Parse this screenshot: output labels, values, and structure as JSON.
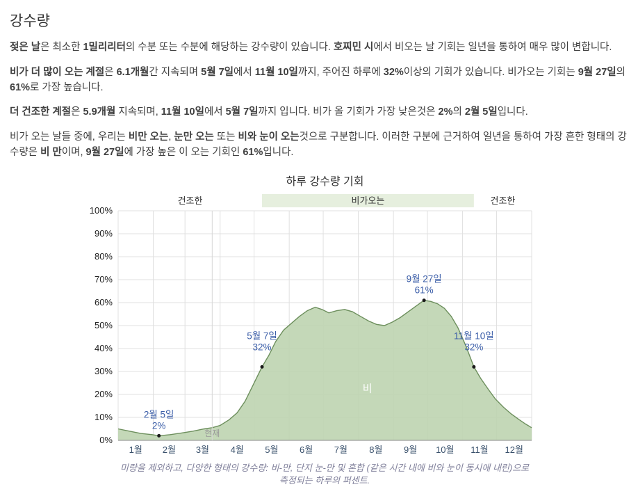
{
  "page": {
    "title": "강수량",
    "paragraphs": [
      {
        "segments": [
          {
            "text": "젖은 날",
            "bold": true
          },
          {
            "text": "은 최소한 ",
            "bold": false
          },
          {
            "text": "1밀리리터",
            "bold": true
          },
          {
            "text": "의 수분 또는 수분에 해당하는 강수량이 있습니다. ",
            "bold": false
          },
          {
            "text": "호찌민 시",
            "bold": true
          },
          {
            "text": "에서 비오는 날 기회는 일년을 통하여 매우 많이 변합니다.",
            "bold": false
          }
        ]
      },
      {
        "segments": [
          {
            "text": "비가 더 많이 오는 계절",
            "bold": true
          },
          {
            "text": "은 ",
            "bold": false
          },
          {
            "text": "6.1개월",
            "bold": true
          },
          {
            "text": "간 지속되며 ",
            "bold": false
          },
          {
            "text": "5월 7일",
            "bold": true
          },
          {
            "text": "에서 ",
            "bold": false
          },
          {
            "text": "11월 10일",
            "bold": true
          },
          {
            "text": "까지, 주어진 하루에 ",
            "bold": false
          },
          {
            "text": "32%",
            "bold": true
          },
          {
            "text": "이상의 기회가 있습니다. 비가오는 기회는 ",
            "bold": false
          },
          {
            "text": "9월 27일",
            "bold": true
          },
          {
            "text": "의 ",
            "bold": false
          },
          {
            "text": "61%",
            "bold": true
          },
          {
            "text": "로 가장 높습니다.",
            "bold": false
          }
        ]
      },
      {
        "segments": [
          {
            "text": "더 건조한 계절",
            "bold": true
          },
          {
            "text": "은 ",
            "bold": false
          },
          {
            "text": "5.9개월",
            "bold": true
          },
          {
            "text": " 지속되며, ",
            "bold": false
          },
          {
            "text": "11월 10일",
            "bold": true
          },
          {
            "text": "에서 ",
            "bold": false
          },
          {
            "text": "5월 7일",
            "bold": true
          },
          {
            "text": "까지 입니다. 비가 올 기회가 가장 낮은것은 ",
            "bold": false
          },
          {
            "text": "2%",
            "bold": true
          },
          {
            "text": "의 ",
            "bold": false
          },
          {
            "text": "2월 5일",
            "bold": true
          },
          {
            "text": "입니다.",
            "bold": false
          }
        ]
      },
      {
        "segments": [
          {
            "text": "비가 오는 날들 중에, 우리는 ",
            "bold": false
          },
          {
            "text": "비만 오는",
            "bold": true
          },
          {
            "text": ", ",
            "bold": false
          },
          {
            "text": "눈만 오는",
            "bold": true
          },
          {
            "text": " 또는 ",
            "bold": false
          },
          {
            "text": "비와 눈이 오는",
            "bold": true
          },
          {
            "text": "것으로 구분합니다. 이러한 구분에 근거하여 일년을 통하여 가장 흔한 형태의 강수량은 ",
            "bold": false
          },
          {
            "text": "비 만",
            "bold": true
          },
          {
            "text": "이며, ",
            "bold": false
          },
          {
            "text": "9월 27일",
            "bold": true
          },
          {
            "text": "에 가장 높은 이 오는 기회인 ",
            "bold": false
          },
          {
            "text": "61%",
            "bold": true
          },
          {
            "text": "입니다.",
            "bold": false
          }
        ]
      }
    ]
  },
  "chart_data": {
    "type": "area",
    "title": "하루 강수량 기회",
    "caption": "미량을 제외하고, 다양한 형태의 강수량: 비-만, 단지 눈-만 및 혼합 (같은 시간 내에 비와 눈이 동시에 내린)으로 측정되는 하루의 퍼센트.",
    "x_unit": "day_of_year",
    "ylim": [
      0,
      100
    ],
    "grid": true,
    "y_ticks": [
      {
        "label": "0%",
        "value": 0
      },
      {
        "label": "10%",
        "value": 10
      },
      {
        "label": "20%",
        "value": 20
      },
      {
        "label": "30%",
        "value": 30
      },
      {
        "label": "40%",
        "value": 40
      },
      {
        "label": "50%",
        "value": 50
      },
      {
        "label": "60%",
        "value": 60
      },
      {
        "label": "70%",
        "value": 70
      },
      {
        "label": "80%",
        "value": 80
      },
      {
        "label": "90%",
        "value": 90
      },
      {
        "label": "100%",
        "value": 100
      }
    ],
    "month_labels": [
      "1월",
      "2월",
      "3월",
      "4월",
      "5월",
      "6월",
      "7월",
      "8월",
      "9월",
      "10월",
      "11월",
      "12월"
    ],
    "month_boundaries": [
      0,
      31,
      59,
      90,
      120,
      151,
      181,
      212,
      243,
      273,
      304,
      334,
      365
    ],
    "points": [
      [
        0,
        5
      ],
      [
        10,
        4
      ],
      [
        20,
        3
      ],
      [
        30,
        2.5
      ],
      [
        36,
        2
      ],
      [
        46,
        2.5
      ],
      [
        56,
        3.2
      ],
      [
        66,
        4
      ],
      [
        76,
        5
      ],
      [
        83,
        5.5
      ],
      [
        90,
        6.5
      ],
      [
        98,
        9
      ],
      [
        105,
        12
      ],
      [
        112,
        17
      ],
      [
        118,
        23
      ],
      [
        123,
        28
      ],
      [
        127,
        32
      ],
      [
        133,
        37
      ],
      [
        139,
        43
      ],
      [
        146,
        48
      ],
      [
        153,
        51
      ],
      [
        160,
        54
      ],
      [
        167,
        56.5
      ],
      [
        174,
        58
      ],
      [
        180,
        57
      ],
      [
        186,
        55.5
      ],
      [
        193,
        56.5
      ],
      [
        200,
        57
      ],
      [
        207,
        56
      ],
      [
        214,
        54
      ],
      [
        221,
        52
      ],
      [
        228,
        50.5
      ],
      [
        235,
        50
      ],
      [
        242,
        51.5
      ],
      [
        249,
        53.5
      ],
      [
        256,
        56
      ],
      [
        263,
        58.5
      ],
      [
        270,
        61
      ],
      [
        276,
        60.5
      ],
      [
        282,
        59.5
      ],
      [
        288,
        57.5
      ],
      [
        294,
        54
      ],
      [
        300,
        49
      ],
      [
        307,
        41
      ],
      [
        314,
        32
      ],
      [
        320,
        27
      ],
      [
        327,
        22
      ],
      [
        333,
        18
      ],
      [
        340,
        14.5
      ],
      [
        347,
        11.5
      ],
      [
        354,
        9
      ],
      [
        360,
        7
      ],
      [
        365,
        5.5
      ]
    ],
    "bands": [
      {
        "label": "건조한",
        "start_day": 0,
        "end_day": 127,
        "shaded": false
      },
      {
        "label": "비가오는",
        "start_day": 127,
        "end_day": 314,
        "shaded": true
      },
      {
        "label": "건조한",
        "start_day": 314,
        "end_day": 365,
        "shaded": false
      }
    ],
    "annotations": [
      {
        "date_label": "2월 5일",
        "value_label": "2%",
        "day": 36,
        "value": 2,
        "label_dy": -26
      },
      {
        "date_label": "5월 7일",
        "value_label": "32%",
        "day": 127,
        "value": 32,
        "label_dy": -40
      },
      {
        "date_label": "9월 27일",
        "value_label": "61%",
        "day": 270,
        "value": 61,
        "label_dy": -26
      },
      {
        "date_label": "11월 10일",
        "value_label": "32%",
        "day": 314,
        "value": 32,
        "label_dy": -40
      }
    ],
    "area_label": {
      "text": "비",
      "day": 220,
      "value": 21
    },
    "now": {
      "label": "현재",
      "day": 83
    },
    "style": {
      "area_fill": "#bed4b0",
      "area_stroke": "#6d8f5d",
      "rainy_band": "#e6efde",
      "grid": "#e0e0e0",
      "axis": "#8a8a8a",
      "annotation": "#3a5da8",
      "month_label": "#39506b",
      "tick_text": "#222222",
      "band_text": "#333333",
      "now_text": "#9a9a9a"
    }
  }
}
